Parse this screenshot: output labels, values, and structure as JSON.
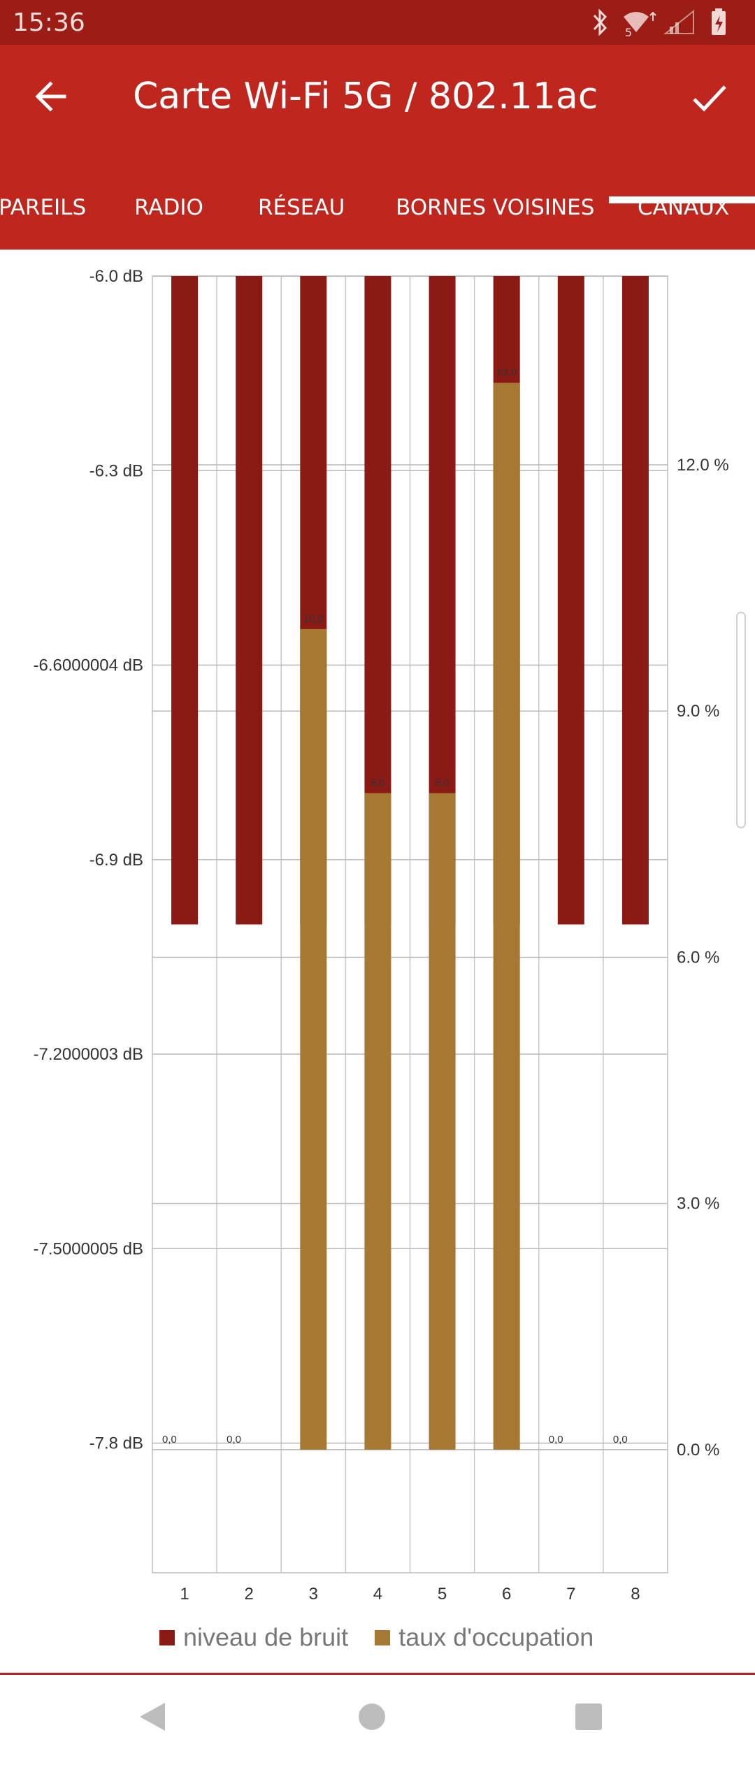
{
  "status_bar": {
    "time": "15:36",
    "wifi_label": "5",
    "icons": [
      "bluetooth-icon",
      "wifi-icon",
      "signal-icon",
      "battery-charging-icon"
    ]
  },
  "app_bar": {
    "title": "Carte Wi-Fi 5G / 802.11ac",
    "back_icon": "arrow-back-icon",
    "confirm_icon": "check-icon"
  },
  "tabs": [
    {
      "label": "PAREILS",
      "selected": false
    },
    {
      "label": "RADIO",
      "selected": false
    },
    {
      "label": "RÉSEAU",
      "selected": false
    },
    {
      "label": "BORNES VOISINES",
      "selected": false
    },
    {
      "label": "CANAUX",
      "selected": true
    }
  ],
  "colors": {
    "primary": "#bf261e",
    "status_bar": "#9c1c16",
    "noise_bar": "#8b1a15",
    "occupancy_bar": "#a67834"
  },
  "chart_data": {
    "type": "bar",
    "categories": [
      "1",
      "2",
      "3",
      "4",
      "5",
      "6",
      "7",
      "8"
    ],
    "series": [
      {
        "name": "niveau de bruit",
        "axis": "left",
        "unit": "dB",
        "values": [
          -7.0,
          -7.0,
          -7.0,
          -7.0,
          -7.0,
          -7.0,
          -7.0,
          -7.0
        ]
      },
      {
        "name": "taux d'occupation",
        "axis": "right",
        "unit": "%",
        "values": [
          0.0,
          0.0,
          10.0,
          8.0,
          8.0,
          13.0,
          0.0,
          0.0
        ],
        "data_labels": [
          "0,0",
          "0,0",
          "10,0",
          "8,0",
          "8,0",
          "13,0",
          "0,0",
          "0,0"
        ]
      }
    ],
    "left_axis": {
      "ticks": [
        -6.0,
        -6.3,
        -6.6000004,
        -6.9,
        -7.2000003,
        -7.5000005,
        -7.8
      ],
      "tick_labels": [
        "-6.0 dB",
        "-6.3 dB",
        "-6.6000004 dB",
        "-6.9 dB",
        "-7.2000003 dB",
        "-7.5000005 dB",
        "-7.8 dB"
      ],
      "range": [
        -8.0,
        -6.0
      ]
    },
    "right_axis": {
      "ticks": [
        0,
        3,
        6,
        9,
        12
      ],
      "tick_labels": [
        "0.0 %",
        "3.0 %",
        "6.0 %",
        "9.0 %",
        "12.0 %"
      ],
      "range": [
        -1.5,
        14.3
      ]
    },
    "grid": true,
    "legend_position": "bottom"
  },
  "nav_bar": {
    "buttons": [
      "back-triangle-icon",
      "home-circle-icon",
      "recents-square-icon"
    ]
  }
}
